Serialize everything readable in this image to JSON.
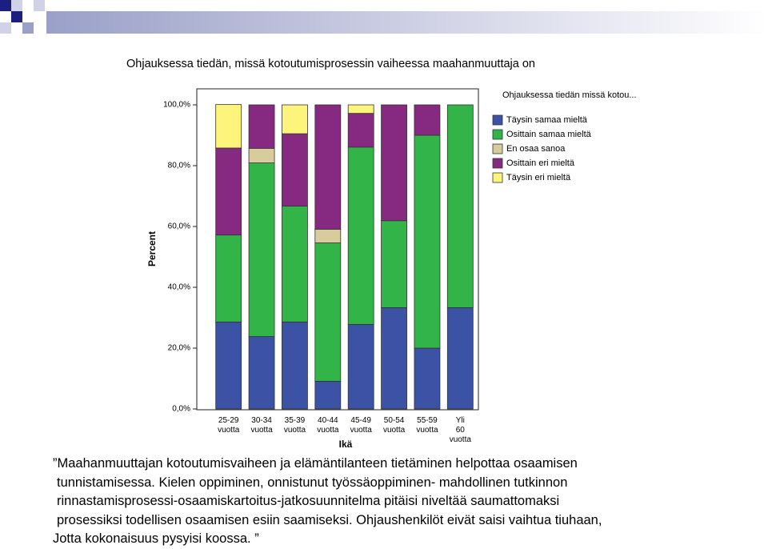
{
  "slide_title": "Ohjauksessa tiedän, missä kotoutumisprosessin vaiheessa maahanmuuttaja on",
  "chart_data": {
    "type": "stacked_bar",
    "categories": [
      "25-29 vuotta",
      "30-34 vuotta",
      "35-39 vuotta",
      "40-44 vuotta",
      "45-49 vuotta",
      "50-54 vuotta",
      "55-59 vuotta",
      "Yli 60 vuotta"
    ],
    "series": [
      {
        "name": "Täysin samaa mieltä",
        "color": "#3c52a5",
        "values": [
          28.6,
          23.8,
          28.6,
          9.1,
          27.8,
          33.3,
          20,
          33.3
        ]
      },
      {
        "name": "Osittain samaa mieltä",
        "color": "#33b449",
        "values": [
          28.6,
          57.1,
          38.1,
          45.5,
          58.3,
          28.6,
          70,
          66.7
        ]
      },
      {
        "name": "En osaa sanoa",
        "color": "#d8cb9c",
        "values": [
          0,
          4.8,
          0,
          4.5,
          0,
          0,
          0,
          0
        ]
      },
      {
        "name": "Osittain eri mieltä",
        "color": "#852a80",
        "values": [
          28.6,
          14.3,
          23.8,
          40.9,
          11.1,
          38.1,
          10,
          0
        ]
      },
      {
        "name": "Täysin eri mieltä",
        "color": "#fdf57b",
        "values": [
          14.3,
          0,
          9.5,
          0,
          2.8,
          0,
          0,
          0
        ]
      }
    ],
    "legend_title": "Ohjauksessa tiedän missä kotou...",
    "ylabel": "Percent",
    "xlabel": "Ikä",
    "ylim": [
      0,
      100
    ],
    "yticks": [
      {
        "value": 0,
        "label": "0,0%"
      },
      {
        "value": 20,
        "label": "20,0%"
      },
      {
        "value": 40,
        "label": "40,0%"
      },
      {
        "value": 60,
        "label": "60,0%"
      },
      {
        "value": 80,
        "label": "80,0%"
      },
      {
        "value": 100,
        "label": "100,0%"
      }
    ]
  },
  "quote_lines": [
    "”Maahanmuuttajan kotoutumisvaiheen ja elämäntilanteen tietäminen helpottaa osaamisen",
    "tunnistamisessa. Kielen oppiminen, onnistunut työssäoppiminen- mahdollinen tutkinnon",
    "rinnastamisprosessi-osaamiskartoitus-jatkosuunnitelma pitäisi niveltää saumattomaksi",
    "prosessiksi todellisen osaamisen esiin saamiseksi. Ohjaushenkilöt eivät saisi vaihtua tiuhaan,",
    "Jotta kokonaisuus pysyisi koossa. ”"
  ]
}
